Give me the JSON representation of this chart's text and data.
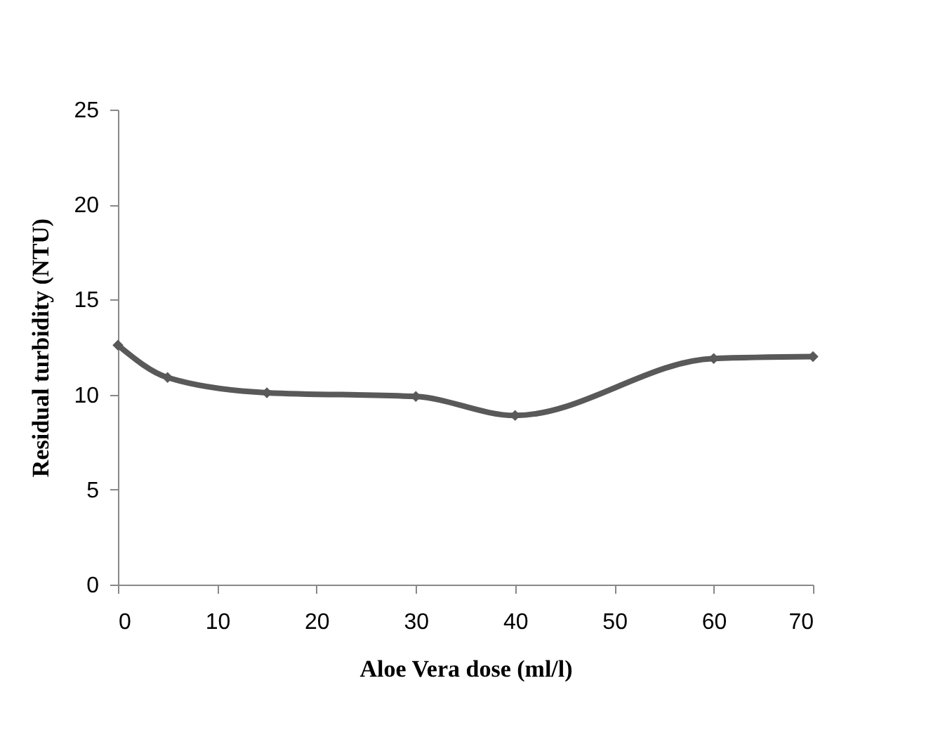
{
  "chart_data": {
    "type": "line",
    "xlabel": "Aloe Vera dose (ml/l)",
    "ylabel": "Residual turbidity  (NTU)",
    "x": [
      0,
      5,
      15,
      30,
      40,
      60,
      70
    ],
    "series": [
      {
        "color": "#595959",
        "values": [
          12.6,
          10.9,
          10.1,
          9.9,
          8.9,
          11.9,
          12.0
        ]
      }
    ],
    "xlim": [
      0,
      70
    ],
    "xticks": [
      0,
      10,
      20,
      30,
      40,
      50,
      60,
      70
    ],
    "ylim": [
      0,
      25
    ],
    "yticks": [
      0,
      5,
      10,
      15,
      20,
      25
    ],
    "grid": false,
    "legend": false,
    "marker": "diamond",
    "line_style": "solid"
  }
}
